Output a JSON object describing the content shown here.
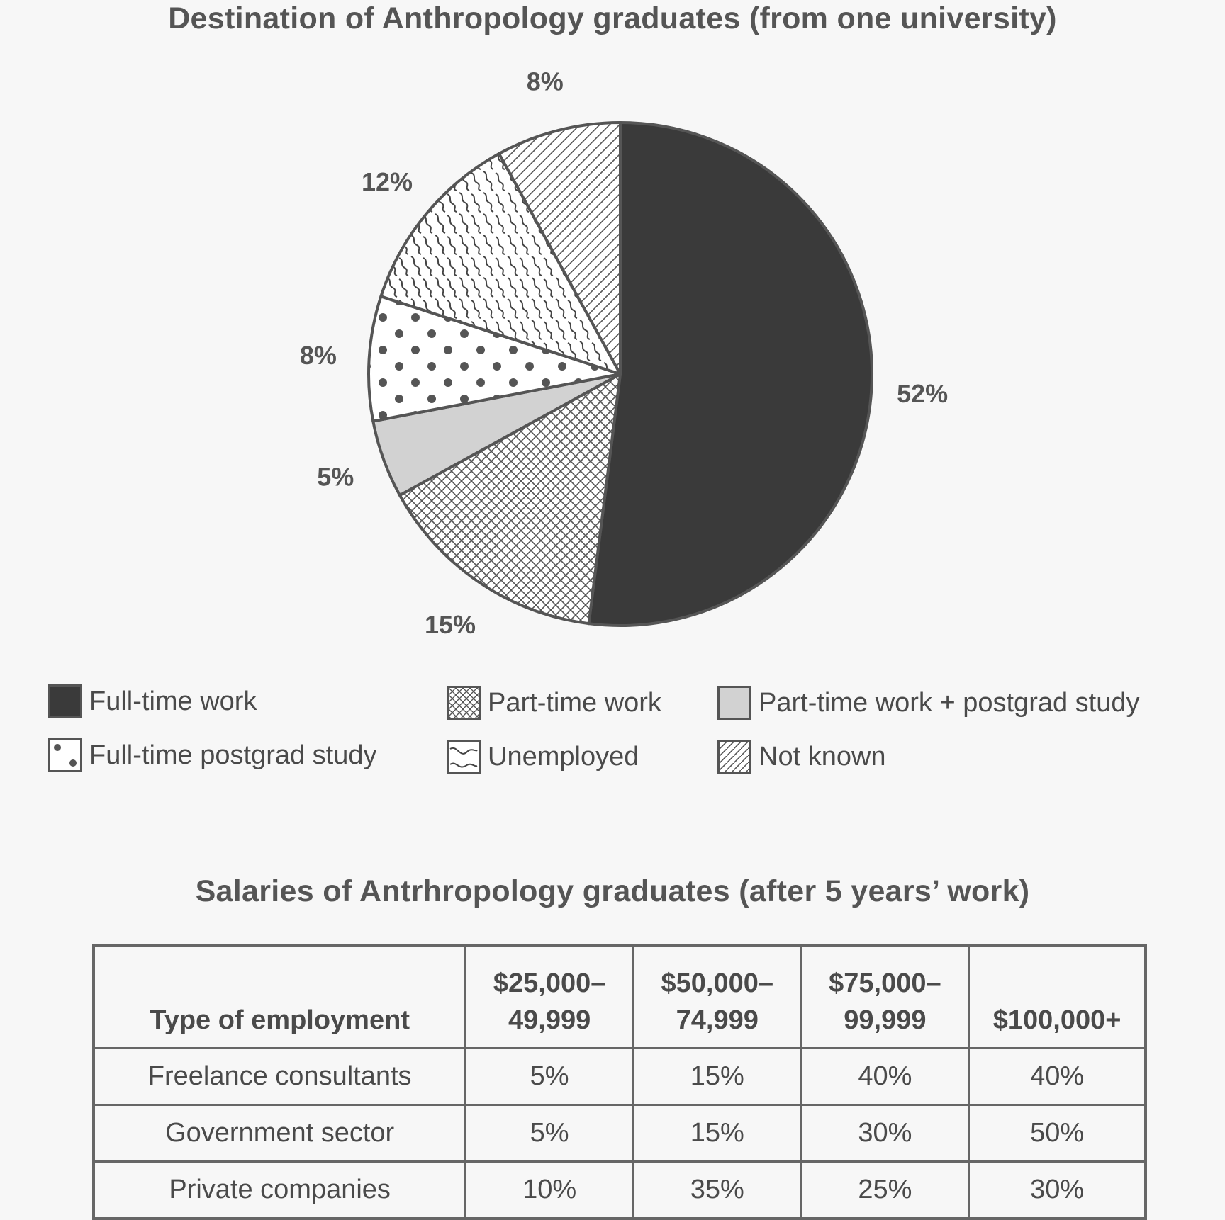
{
  "pie_title": "Destination of Anthropology graduates (from one university)",
  "table_title": "Salaries of Antrhropology graduates (after 5 years’ work)",
  "chart_data": [
    {
      "type": "pie",
      "title": "Destination of Anthropology graduates (from one university)",
      "slices": [
        {
          "label": "Full-time work",
          "value": 52,
          "display": "52%",
          "pattern": "solid-dark",
          "color": "#3a3a3a"
        },
        {
          "label": "Part-time work",
          "value": 15,
          "display": "15%",
          "pattern": "crosshatch",
          "color": "#ffffff"
        },
        {
          "label": "Part-time work + postgrad study",
          "value": 5,
          "display": "5%",
          "pattern": "solid-light",
          "color": "#cfcfcf"
        },
        {
          "label": "Full-time postgrad study",
          "value": 8,
          "display": "8%",
          "pattern": "dots",
          "color": "#ffffff"
        },
        {
          "label": "Unemployed",
          "value": 12,
          "display": "12%",
          "pattern": "squiggle",
          "color": "#ffffff"
        },
        {
          "label": "Not known",
          "value": 8,
          "display": "8%",
          "pattern": "diagonal",
          "color": "#ffffff"
        }
      ],
      "direction": "clockwise from top",
      "legend_placement": "bottom"
    },
    {
      "type": "table",
      "title": "Salaries of Antrhropology graduates (after 5 years’ work)",
      "columns": [
        {
          "label": "Type of employment",
          "lines": [
            "Type of employment"
          ]
        },
        {
          "label": "$25,000–49,999",
          "lines": [
            "$25,000–",
            "49,999"
          ]
        },
        {
          "label": "$50,000–74,999",
          "lines": [
            "$50,000–",
            "74,999"
          ]
        },
        {
          "label": "$75,000–99,999",
          "lines": [
            "$75,000–",
            "99,999"
          ]
        },
        {
          "label": "$100,000+",
          "lines": [
            "$100,000+"
          ]
        }
      ],
      "rows": [
        {
          "label": "Freelance consultants",
          "values": [
            "5%",
            "15%",
            "40%",
            "40%"
          ]
        },
        {
          "label": "Government sector",
          "values": [
            "5%",
            "15%",
            "30%",
            "50%"
          ]
        },
        {
          "label": "Private companies",
          "values": [
            "10%",
            "35%",
            "25%",
            "30%"
          ]
        }
      ]
    }
  ],
  "legend": [
    {
      "label": "Full-time work",
      "pattern": "solid-dark"
    },
    {
      "label": "Part-time work",
      "pattern": "crosshatch"
    },
    {
      "label": "Part-time work + postgrad study",
      "pattern": "solid-light"
    },
    {
      "label": "Full-time postgrad study",
      "pattern": "dots"
    },
    {
      "label": "Unemployed",
      "pattern": "squiggle"
    },
    {
      "label": "Not known",
      "pattern": "diagonal"
    }
  ]
}
